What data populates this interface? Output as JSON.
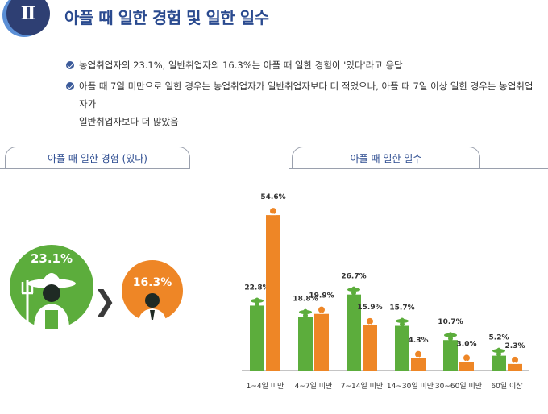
{
  "header": {
    "section_number": "Ⅱ",
    "title": "아플 때 일한 경험 및 일한 일수"
  },
  "bullets": [
    "농업취업자의 23.1%, 일반취업자의 16.3%는 아플 때 일한 경험이 '있다'라고 응답",
    "아플 때 7일 미만으로 일한 경우는 농업취업자가 일반취업자보다 더 적었으나, 아플 때 7일 이상 일한 경우는 농업취업자가",
    "일반취업자보다 더 많았음"
  ],
  "left_panel": {
    "tab_label": "아플 때 일한 경험 (있다)",
    "farmer_value": "23.1%",
    "general_value": "16.3%",
    "comparison_symbol": "❯"
  },
  "right_panel": {
    "tab_label": "아플 때 일한 일수"
  },
  "colors": {
    "farm": "#5cad3c",
    "general": "#ee8626",
    "title": "#2a4a8f"
  },
  "chart_data": {
    "type": "bar",
    "categories": [
      "1~4일 미만",
      "4~7일 미만",
      "7~14일 미만",
      "14~30일 미만",
      "30~60일 미만",
      "60일 이상"
    ],
    "series": [
      {
        "values": [
          22.8,
          18.8,
          26.7,
          15.7,
          10.7,
          5.2
        ],
        "labels": [
          "22.8%",
          "18.8%",
          "26.7%",
          "15.7%",
          "10.7%",
          "5.2%"
        ],
        "color": "#5cad3c"
      },
      {
        "values": [
          54.6,
          19.9,
          15.9,
          4.3,
          3.0,
          2.3
        ],
        "labels": [
          "54.6%",
          "19.9%",
          "15.9%",
          "4.3%",
          "3.0%",
          "2.3%"
        ],
        "color": "#ee8626"
      }
    ],
    "ylim": [
      0,
      60
    ]
  }
}
